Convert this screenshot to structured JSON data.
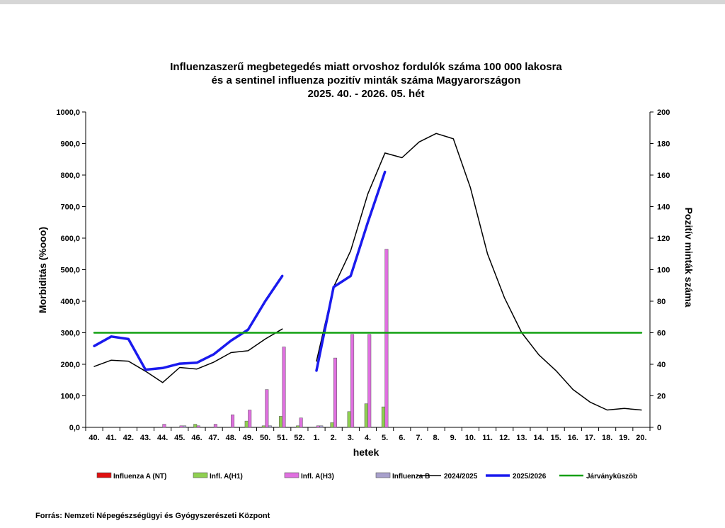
{
  "chart_data": {
    "type": "bar+line",
    "title_lines": [
      "Influenzaszerű megbetegedés miatt orvoshoz fordulók száma 100 000 lakosra",
      "és a sentinel influenza pozitív minták száma Magyarországon",
      "2025. 40. - 2026. 05. hét"
    ],
    "xlabel": "hetek",
    "ylabel_left": "Morbiditás (%ooo)",
    "ylabel_right": "Pozitív minták száma",
    "ylim_left": [
      0,
      1000
    ],
    "ylim_right": [
      0,
      200
    ],
    "yticks_left": [
      "0,0",
      "100,0",
      "200,0",
      "300,0",
      "400,0",
      "500,0",
      "600,0",
      "700,0",
      "800,0",
      "900,0",
      "1000,0"
    ],
    "yticks_right": [
      "0",
      "20",
      "40",
      "60",
      "80",
      "100",
      "120",
      "140",
      "160",
      "180",
      "200"
    ],
    "categories": [
      "40.",
      "41.",
      "42.",
      "43.",
      "44.",
      "45.",
      "46.",
      "47.",
      "48.",
      "49.",
      "50.",
      "51.",
      "52.",
      "1.",
      "2.",
      "3.",
      "4.",
      "5.",
      "6.",
      "7.",
      "8.",
      "9.",
      "10.",
      "11.",
      "12.",
      "13.",
      "14.",
      "15.",
      "16.",
      "17.",
      "18.",
      "19.",
      "20."
    ],
    "bars": [
      {
        "name": "Influenza A (NT)",
        "color": "#e01010",
        "values": [
          0,
          0,
          0,
          0,
          0,
          0,
          0,
          0,
          0,
          0,
          0,
          0,
          0,
          0,
          0,
          0,
          0,
          0,
          null,
          null,
          null,
          null,
          null,
          null,
          null,
          null,
          null,
          null,
          null,
          null,
          null,
          null,
          null
        ]
      },
      {
        "name": "Infl. A(H1)",
        "color": "#8fd050",
        "values": [
          0,
          0,
          0,
          0,
          0,
          0,
          2,
          0,
          0,
          4,
          1,
          7,
          1,
          0,
          3,
          10,
          15,
          13,
          null,
          null,
          null,
          null,
          null,
          null,
          null,
          null,
          null,
          null,
          null,
          null,
          null,
          null,
          null
        ]
      },
      {
        "name": "Infl. A(H3)",
        "color": "#e070e0",
        "values": [
          0,
          0,
          0,
          0,
          2,
          1,
          1,
          2,
          8,
          11,
          24,
          51,
          6,
          1,
          44,
          59,
          59,
          113,
          null,
          null,
          null,
          null,
          null,
          null,
          null,
          null,
          null,
          null,
          null,
          null,
          null,
          null,
          null
        ]
      },
      {
        "name": "Influenza B",
        "color": "#a8a0cc",
        "values": [
          0,
          0,
          0,
          0,
          0,
          1,
          0,
          0,
          0,
          0,
          1,
          0,
          0,
          1,
          0,
          0,
          0,
          0,
          null,
          null,
          null,
          null,
          null,
          null,
          null,
          null,
          null,
          null,
          null,
          null,
          null,
          null,
          null
        ]
      }
    ],
    "lines": [
      {
        "name": "2024/2025",
        "color": "#000000",
        "width": 1.5,
        "values": [
          193,
          213,
          210,
          178,
          142,
          190,
          185,
          207,
          237,
          243,
          280,
          312,
          null,
          210,
          445,
          560,
          740,
          870,
          855,
          905,
          932,
          915,
          760,
          550,
          410,
          300,
          230,
          180,
          120,
          80,
          55,
          60,
          55
        ]
      },
      {
        "name": "2025/2026",
        "color": "#1a1aee",
        "width": 3.5,
        "values": [
          258,
          288,
          280,
          183,
          188,
          202,
          205,
          232,
          275,
          310,
          400,
          480,
          null,
          180,
          445,
          480,
          650,
          810,
          null,
          null,
          null,
          null,
          null,
          null,
          null,
          null,
          null,
          null,
          null,
          null,
          null,
          null,
          null
        ]
      },
      {
        "name": "Járványküszöb",
        "color": "#11a011",
        "width": 2.5,
        "values": [
          300,
          300,
          300,
          300,
          300,
          300,
          300,
          300,
          300,
          300,
          300,
          300,
          300,
          300,
          300,
          300,
          300,
          300,
          300,
          300,
          300,
          300,
          300,
          300,
          300,
          300,
          300,
          300,
          300,
          300,
          300,
          300,
          300
        ]
      }
    ],
    "legend_placement": "bottom"
  },
  "legend": [
    "Influenza A (NT)",
    "Infl. A(H1)",
    "Infl. A(H3)",
    "Influenza B",
    "2024/2025",
    "2025/2026",
    "Járványküszöb"
  ],
  "source": "Forrás: Nemzeti Népegészségügyi és Gyógyszerészeti Központ"
}
